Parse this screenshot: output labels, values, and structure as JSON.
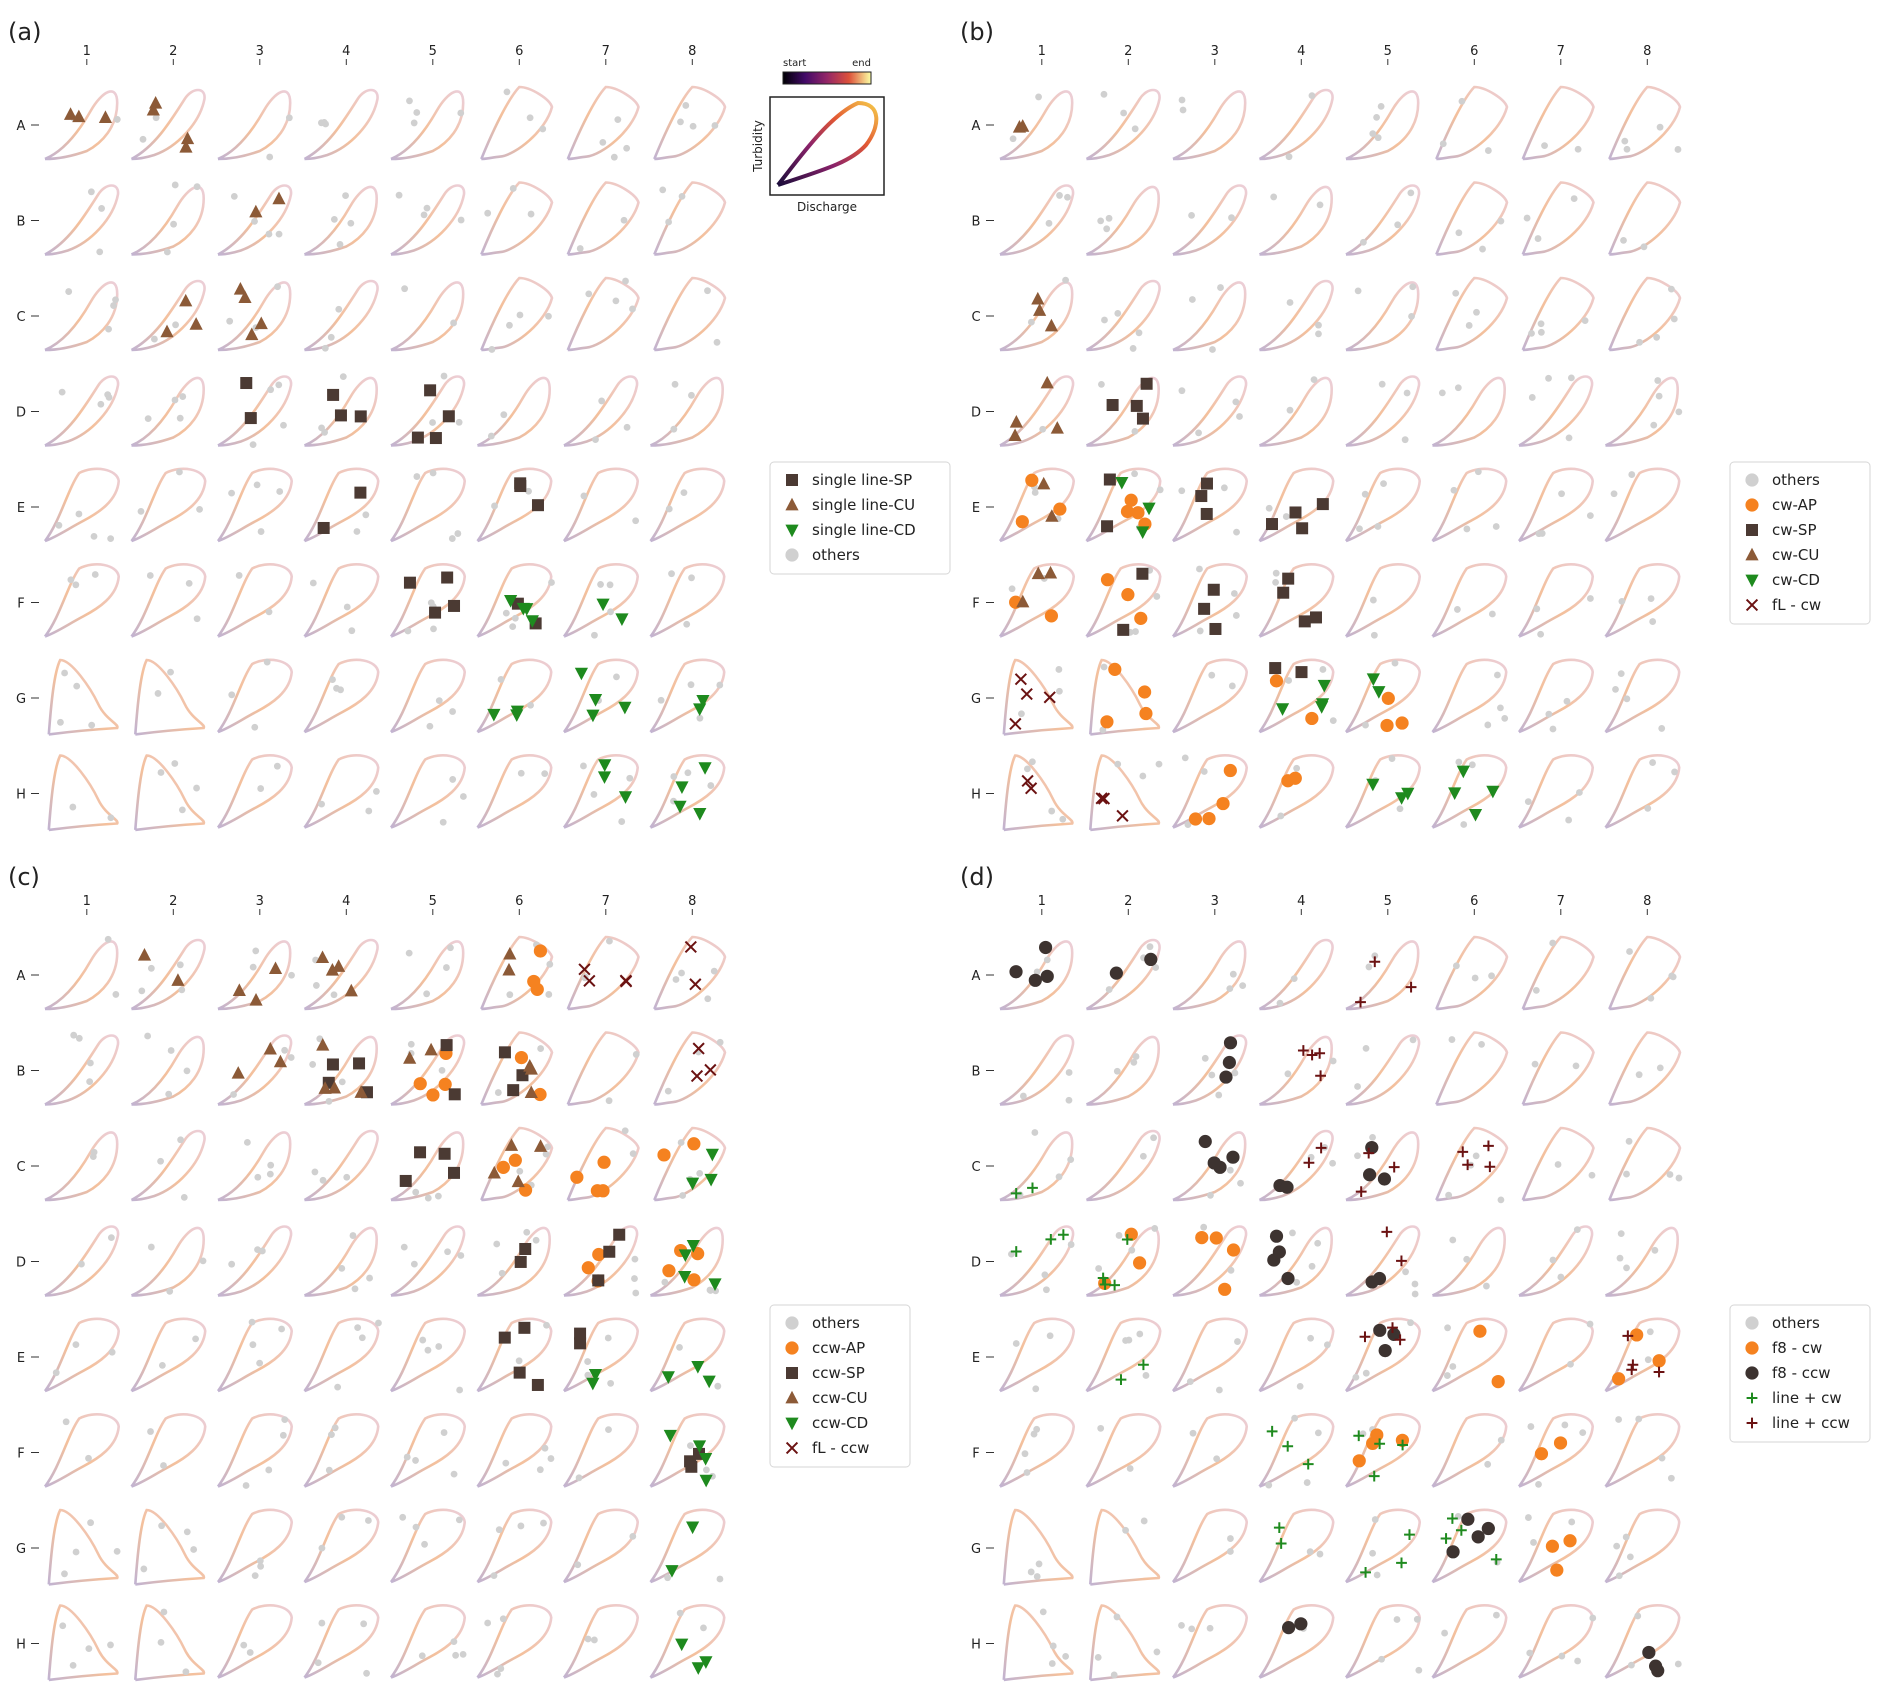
{
  "chart_data": {
    "type": "scatter",
    "description_note": "",
    "panels": [
      {
        "label": "(a)",
        "columns": [
          "1",
          "2",
          "3",
          "4",
          "5",
          "6",
          "7",
          "8"
        ],
        "rows": [
          "A",
          "B",
          "C",
          "D",
          "E",
          "F",
          "G",
          "H"
        ],
        "series": [
          {
            "name": "single line-SP",
            "marker": "square",
            "color": "#4b3a33",
            "cells": [
              "D3",
              "D4",
              "D5",
              "E4",
              "E6",
              "F5",
              "F6"
            ]
          },
          {
            "name": "single line-CU",
            "marker": "triangle-up",
            "color": "#8c5a37",
            "cells": [
              "A1",
              "A2",
              "B3",
              "C2",
              "C3"
            ]
          },
          {
            "name": "single line-CD",
            "marker": "triangle-down",
            "color": "#1e8a1e",
            "cells": [
              "F6",
              "F7",
              "G6",
              "G7",
              "G8",
              "H7",
              "H8"
            ]
          },
          {
            "name": "others",
            "marker": "circle",
            "color": "#d0d0d0",
            "cells": []
          }
        ]
      },
      {
        "label": "(b)",
        "columns": [
          "1",
          "2",
          "3",
          "4",
          "5",
          "6",
          "7",
          "8"
        ],
        "rows": [
          "A",
          "B",
          "C",
          "D",
          "E",
          "F",
          "G",
          "H"
        ],
        "series": [
          {
            "name": "others",
            "marker": "circle",
            "color": "#d0d0d0",
            "cells": []
          },
          {
            "name": "cw-AP",
            "marker": "circle",
            "color": "#f58220",
            "cells": [
              "E1",
              "E2",
              "F1",
              "F2",
              "G2",
              "G4",
              "G5",
              "H3",
              "H4"
            ]
          },
          {
            "name": "cw-SP",
            "marker": "square",
            "color": "#4b3a33",
            "cells": [
              "D2",
              "E2",
              "E3",
              "E4",
              "F2",
              "F3",
              "F4",
              "G4"
            ]
          },
          {
            "name": "cw-CU",
            "marker": "triangle-up",
            "color": "#8c5a37",
            "cells": [
              "A1",
              "C1",
              "D1",
              "E1",
              "F1"
            ]
          },
          {
            "name": "cw-CD",
            "marker": "triangle-down",
            "color": "#1e8a1e",
            "cells": [
              "E2",
              "G4",
              "G5",
              "H5",
              "H6"
            ]
          },
          {
            "name": "fL - cw",
            "marker": "x",
            "color": "#6b1212",
            "cells": [
              "G1",
              "H1",
              "H2"
            ]
          }
        ]
      },
      {
        "label": "(c)",
        "columns": [
          "1",
          "2",
          "3",
          "4",
          "5",
          "6",
          "7",
          "8"
        ],
        "rows": [
          "A",
          "B",
          "C",
          "D",
          "E",
          "F",
          "G",
          "H"
        ],
        "series": [
          {
            "name": "others",
            "marker": "circle",
            "color": "#d0d0d0",
            "cells": []
          },
          {
            "name": "ccw-AP",
            "marker": "circle",
            "color": "#f58220",
            "cells": [
              "A6",
              "B5",
              "B6",
              "C6",
              "C7",
              "C8",
              "D7",
              "D8"
            ]
          },
          {
            "name": "ccw-SP",
            "marker": "square",
            "color": "#4b3a33",
            "cells": [
              "B4",
              "B5",
              "B6",
              "C5",
              "D6",
              "D7",
              "E6",
              "E7",
              "F8"
            ]
          },
          {
            "name": "ccw-CU",
            "marker": "triangle-up",
            "color": "#8c5a37",
            "cells": [
              "A2",
              "A3",
              "A4",
              "A6",
              "B3",
              "B4",
              "B5",
              "B6",
              "C6"
            ]
          },
          {
            "name": "ccw-CD",
            "marker": "triangle-down",
            "color": "#1e8a1e",
            "cells": [
              "C8",
              "D8",
              "E7",
              "E8",
              "F8",
              "G8",
              "H8"
            ]
          },
          {
            "name": "fL - ccw",
            "marker": "x",
            "color": "#6b1212",
            "cells": [
              "A7",
              "A8",
              "B8"
            ]
          }
        ]
      },
      {
        "label": "(d)",
        "columns": [
          "1",
          "2",
          "3",
          "4",
          "5",
          "6",
          "7",
          "8"
        ],
        "rows": [
          "A",
          "B",
          "C",
          "D",
          "E",
          "F",
          "G",
          "H"
        ],
        "series": [
          {
            "name": "others",
            "marker": "circle",
            "color": "#d0d0d0",
            "cells": []
          },
          {
            "name": "f8 - cw",
            "marker": "circle",
            "color": "#f58220",
            "cells": [
              "D2",
              "D3",
              "E6",
              "E8",
              "F5",
              "F7",
              "G7"
            ]
          },
          {
            "name": "f8 - ccw",
            "marker": "circle",
            "color": "#3d3330",
            "cells": [
              "A1",
              "A2",
              "B3",
              "C3",
              "C4",
              "C5",
              "D4",
              "D5",
              "E5",
              "G6",
              "H4",
              "H8"
            ]
          },
          {
            "name": "line + cw",
            "marker": "plus",
            "color": "#1e8a1e",
            "cells": [
              "C1",
              "D1",
              "D2",
              "E2",
              "F4",
              "F5",
              "G4",
              "G5",
              "G6"
            ]
          },
          {
            "name": "line + ccw",
            "marker": "plus",
            "color": "#6b1212",
            "cells": [
              "A5",
              "B4",
              "C4",
              "C5",
              "C6",
              "D5",
              "E5",
              "E8"
            ]
          }
        ]
      }
    ]
  },
  "inset": {
    "colorbar_start": "start",
    "colorbar_end": "end",
    "ylabel": "Turbidity",
    "xlabel": "Discharge"
  },
  "colors": {
    "loop_start": "#b7a6c9",
    "loop_mid": "#f2b58a",
    "loop_end": "#e8c6d2",
    "others": "#d0d0d0"
  }
}
